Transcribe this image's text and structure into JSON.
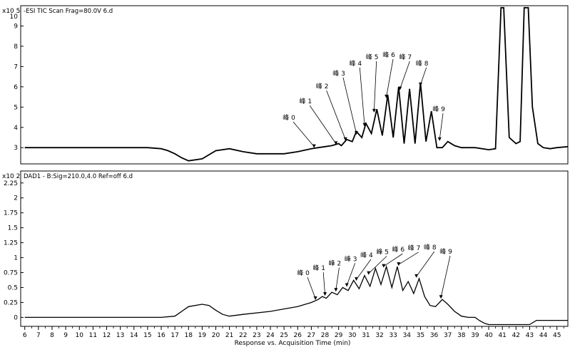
{
  "chart_data": [
    {
      "type": "line",
      "title": "-ESI TIC Scan Frag=80.0V 6.d",
      "y_multiplier": "x10 5",
      "x": [
        6,
        14,
        15,
        16,
        16.5,
        17,
        17.5,
        18,
        19,
        20,
        21,
        22,
        23,
        24,
        25,
        26,
        27,
        27.5,
        28,
        28.5,
        29,
        29.2,
        29.6,
        30,
        30.3,
        30.7,
        31,
        31.4,
        31.8,
        32.2,
        32.6,
        33,
        33.4,
        33.8,
        34.2,
        34.6,
        35,
        35.4,
        35.8,
        36.2,
        36.6,
        37,
        37.5,
        38,
        39,
        40,
        40.5,
        40.9,
        41.1,
        41.5,
        42,
        42.3,
        42.6,
        42.9,
        43.2,
        43.6,
        44,
        44.5,
        45,
        45.8
      ],
      "y": [
        3.0,
        3.0,
        3.0,
        2.95,
        2.85,
        2.7,
        2.5,
        2.35,
        2.45,
        2.85,
        2.95,
        2.8,
        2.7,
        2.7,
        2.7,
        2.8,
        2.95,
        3.0,
        3.05,
        3.1,
        3.2,
        3.1,
        3.4,
        3.3,
        3.8,
        3.5,
        4.2,
        3.7,
        4.9,
        3.6,
        5.6,
        3.5,
        6.0,
        3.2,
        5.9,
        3.2,
        6.2,
        3.3,
        4.8,
        3.0,
        3.0,
        3.3,
        3.1,
        3.0,
        3.0,
        2.9,
        2.95,
        9.9,
        9.9,
        3.5,
        3.2,
        3.3,
        9.9,
        9.9,
        5.0,
        3.2,
        3.0,
        2.95,
        3.0,
        3.05
      ],
      "xlim": [
        5.7,
        45.8
      ],
      "ylim": [
        2.2,
        10.0
      ],
      "y_ticks": [
        3,
        4,
        5,
        6,
        7,
        8,
        9
      ],
      "y_top_label": "10",
      "peaks": [
        {
          "label": "峰 0",
          "x": 27.2,
          "y": 2.95
        },
        {
          "label": "峰 1",
          "x": 28.8,
          "y": 3.1
        },
        {
          "label": "峰 2",
          "x": 29.5,
          "y": 3.3
        },
        {
          "label": "峰 3",
          "x": 30.3,
          "y": 3.6
        },
        {
          "label": "峰 4",
          "x": 30.9,
          "y": 4.0
        },
        {
          "label": "峰 5",
          "x": 31.6,
          "y": 4.7
        },
        {
          "label": "峰 6",
          "x": 32.5,
          "y": 5.4
        },
        {
          "label": "峰 7",
          "x": 33.5,
          "y": 5.8
        },
        {
          "label": "峰 8",
          "x": 35.0,
          "y": 6.0
        },
        {
          "label": "峰 9",
          "x": 36.4,
          "y": 3.3
        }
      ]
    },
    {
      "type": "line",
      "title": "DAD1 - B:Sig=210.0,4.0  Ref=off 6.d",
      "y_multiplier": "x10 2",
      "x": [
        6,
        10,
        15,
        16,
        17,
        17.5,
        18,
        19,
        19.5,
        20,
        20.5,
        21,
        22,
        24,
        26,
        27,
        27.5,
        27.8,
        28.1,
        28.5,
        28.9,
        29.3,
        29.7,
        30.1,
        30.5,
        30.9,
        31.3,
        31.7,
        32.1,
        32.5,
        32.9,
        33.3,
        33.7,
        34.1,
        34.5,
        34.9,
        35.3,
        35.7,
        36.1,
        36.6,
        37,
        37.5,
        38,
        38.5,
        39,
        39.3,
        39.7,
        40,
        41,
        42,
        43,
        43.5,
        44,
        45,
        45.8
      ],
      "y": [
        0.0,
        0.0,
        0.0,
        0.0,
        0.02,
        0.1,
        0.18,
        0.22,
        0.2,
        0.12,
        0.05,
        0.02,
        0.05,
        0.1,
        0.18,
        0.25,
        0.3,
        0.35,
        0.32,
        0.42,
        0.38,
        0.5,
        0.45,
        0.62,
        0.48,
        0.7,
        0.52,
        0.82,
        0.55,
        0.85,
        0.5,
        0.85,
        0.45,
        0.6,
        0.4,
        0.65,
        0.35,
        0.2,
        0.18,
        0.3,
        0.22,
        0.1,
        0.02,
        0.0,
        0.0,
        -0.05,
        -0.1,
        -0.12,
        -0.12,
        -0.12,
        -0.12,
        -0.05,
        -0.05,
        -0.05,
        -0.05
      ],
      "xlim": [
        5.7,
        45.8
      ],
      "ylim": [
        -0.15,
        2.45
      ],
      "y_ticks": [
        0,
        0.25,
        0.5,
        0.75,
        1,
        1.25,
        1.5,
        1.75,
        2,
        2.25
      ],
      "peaks": [
        {
          "label": "峰 0",
          "x": 27.3,
          "y": 0.28
        },
        {
          "label": "峰 1",
          "x": 28.0,
          "y": 0.35
        },
        {
          "label": "峰 2",
          "x": 28.8,
          "y": 0.42
        },
        {
          "label": "峰 3",
          "x": 29.6,
          "y": 0.5
        },
        {
          "label": "峰 4",
          "x": 30.3,
          "y": 0.6
        },
        {
          "label": "峰 5",
          "x": 31.2,
          "y": 0.7
        },
        {
          "label": "峰 6",
          "x": 32.3,
          "y": 0.82
        },
        {
          "label": "峰 7",
          "x": 33.4,
          "y": 0.85
        },
        {
          "label": "峰 8",
          "x": 34.7,
          "y": 0.65
        },
        {
          "label": "峰 9",
          "x": 36.5,
          "y": 0.3
        }
      ]
    }
  ],
  "x_axis": {
    "label": "Response vs. Acquisition Time (min)",
    "ticks": [
      6,
      7,
      8,
      9,
      10,
      11,
      12,
      13,
      14,
      15,
      16,
      17,
      18,
      19,
      20,
      21,
      22,
      23,
      24,
      25,
      26,
      27,
      28,
      29,
      30,
      31,
      32,
      33,
      34,
      35,
      36,
      37,
      38,
      39,
      40,
      41,
      42,
      43,
      44,
      45
    ]
  }
}
